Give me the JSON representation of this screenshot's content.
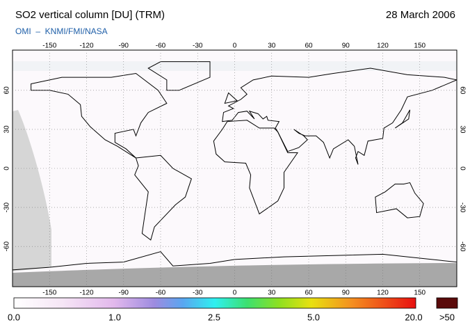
{
  "header": {
    "title": "SO2 vertical column [DU] (TRM)",
    "date": "28 March 2006",
    "source": "OMI  –  KNMI/FMI/NASA"
  },
  "map": {
    "lon_ticks": [
      -150,
      -120,
      -90,
      -60,
      -30,
      0,
      30,
      60,
      90,
      120,
      150
    ],
    "lat_ticks": [
      60,
      30,
      0,
      -30,
      -60
    ]
  },
  "colorbar": {
    "labels": [
      "0.0",
      "1.0",
      "2.5",
      "5.0",
      "20.0"
    ],
    "overflow_label": ">50"
  }
}
